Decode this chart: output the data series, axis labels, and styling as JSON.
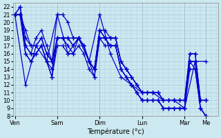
{
  "xlabel": "Température (°c)",
  "ylim": [
    8,
    22.5
  ],
  "yticks": [
    8,
    9,
    10,
    11,
    12,
    13,
    14,
    15,
    16,
    17,
    18,
    19,
    20,
    21,
    22
  ],
  "xtick_labels": [
    "Ven",
    "Sam",
    "Dim",
    "Lun",
    "Mar",
    "Me"
  ],
  "xtick_positions": [
    0,
    48,
    96,
    144,
    192,
    216
  ],
  "xlim": [
    -2,
    230
  ],
  "bg_color": "#cce8f0",
  "grid_color": "#aaccdd",
  "line_color": "#0000cc",
  "marker": "+",
  "markersize": 4,
  "linewidth": 0.9,
  "series": [
    [
      0,
      21,
      6,
      21,
      12,
      17,
      18,
      16,
      24,
      16,
      30,
      17,
      36,
      15,
      42,
      14,
      48,
      18,
      54,
      18,
      60,
      18,
      66,
      17,
      72,
      18,
      78,
      17,
      84,
      15,
      90,
      14,
      96,
      19,
      102,
      18,
      108,
      18,
      114,
      18,
      120,
      15,
      126,
      14,
      132,
      13,
      138,
      12,
      144,
      11,
      150,
      11,
      156,
      11,
      162,
      11,
      168,
      10,
      174,
      10,
      180,
      10,
      186,
      10,
      192,
      10,
      198,
      15,
      204,
      15,
      210,
      10,
      216,
      10
    ],
    [
      0,
      21,
      6,
      21,
      12,
      16,
      18,
      15,
      24,
      16,
      30,
      17,
      36,
      15,
      42,
      13,
      48,
      18,
      54,
      18,
      60,
      17,
      66,
      16,
      72,
      18,
      78,
      17,
      84,
      15,
      90,
      13,
      96,
      18,
      102,
      18,
      108,
      17,
      114,
      17,
      120,
      14,
      126,
      13,
      132,
      12,
      138,
      11,
      144,
      10,
      150,
      10,
      156,
      10,
      162,
      10,
      168,
      9,
      174,
      9,
      180,
      9,
      186,
      9,
      192,
      9,
      198,
      15,
      204,
      14,
      210,
      9,
      216,
      8
    ],
    [
      0,
      21,
      6,
      21,
      12,
      19,
      18,
      17,
      24,
      17,
      30,
      18,
      36,
      16,
      42,
      15,
      48,
      18,
      54,
      18,
      60,
      18,
      66,
      18,
      72,
      18,
      78,
      17,
      84,
      15,
      90,
      14,
      96,
      19,
      102,
      19,
      108,
      18,
      114,
      18,
      120,
      15,
      126,
      14,
      132,
      13,
      138,
      12,
      144,
      11,
      150,
      11,
      156,
      11,
      162,
      11,
      168,
      10,
      174,
      10,
      180,
      10,
      186,
      10,
      192,
      10,
      198,
      16,
      204,
      16,
      210,
      10,
      216,
      10
    ],
    [
      0,
      21,
      6,
      21,
      12,
      16,
      18,
      15,
      24,
      16,
      30,
      17,
      36,
      15,
      42,
      13,
      48,
      17,
      54,
      17,
      60,
      16,
      66,
      16,
      72,
      17,
      78,
      16,
      84,
      14,
      90,
      13,
      96,
      18,
      102,
      17,
      108,
      17,
      114,
      17,
      120,
      14,
      126,
      13,
      132,
      12,
      138,
      11,
      144,
      10,
      150,
      10,
      156,
      10,
      162,
      10,
      168,
      9,
      174,
      9,
      180,
      9,
      186,
      9,
      192,
      9,
      198,
      14,
      204,
      14,
      210,
      9,
      216,
      8
    ],
    [
      0,
      21,
      6,
      22,
      12,
      17,
      18,
      16,
      24,
      18,
      30,
      19,
      36,
      17,
      42,
      15,
      48,
      21,
      54,
      21,
      60,
      20,
      66,
      18,
      72,
      18,
      78,
      17,
      84,
      15,
      90,
      14,
      96,
      18,
      102,
      18,
      108,
      17,
      114,
      17,
      120,
      14,
      126,
      13,
      132,
      12,
      138,
      11,
      144,
      10,
      150,
      10,
      156,
      10,
      162,
      10,
      168,
      9,
      174,
      9,
      180,
      9,
      186,
      9,
      192,
      9,
      198,
      15,
      204,
      15,
      210,
      9,
      216,
      8
    ],
    [
      0,
      21,
      6,
      22,
      12,
      18,
      18,
      17,
      24,
      17,
      30,
      18,
      36,
      16,
      42,
      15,
      48,
      18,
      54,
      18,
      60,
      18,
      66,
      17,
      72,
      18,
      78,
      17,
      84,
      15,
      90,
      14,
      96,
      19,
      102,
      18,
      108,
      18,
      114,
      18,
      120,
      15,
      126,
      14,
      132,
      13,
      138,
      12,
      144,
      11,
      150,
      11,
      156,
      11,
      162,
      11,
      168,
      10,
      174,
      10,
      180,
      10,
      186,
      10,
      192,
      10,
      198,
      16,
      204,
      16,
      210,
      10,
      216,
      10
    ],
    [
      0,
      21,
      12,
      12,
      24,
      17,
      36,
      15,
      48,
      21,
      60,
      16,
      72,
      18,
      84,
      15,
      96,
      21,
      108,
      16,
      120,
      13,
      132,
      12,
      144,
      11,
      156,
      11,
      168,
      10,
      180,
      10,
      192,
      9,
      204,
      15,
      216,
      15
    ]
  ]
}
